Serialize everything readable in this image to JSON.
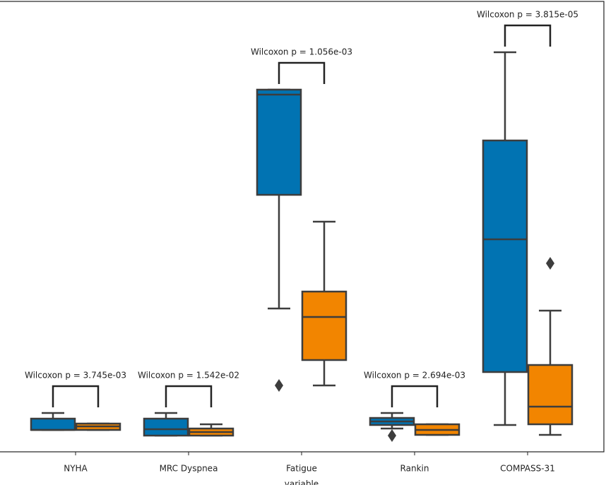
{
  "chart_data": {
    "type": "box",
    "categories": [
      "NYHA",
      "MRC Dyspnea",
      "Fatigue",
      "Rankin",
      "COMPASS-31"
    ],
    "xlabel": "variable",
    "ylim": [
      0,
      64
    ],
    "annotations": [
      "Wilcoxon p = 3.745e-03",
      "Wilcoxon p = 1.542e-02",
      "Wilcoxon p = 1.056e-03",
      "Wilcoxon p = 2.694e-03",
      "Wilcoxon p = 3.815e-05"
    ],
    "series": [
      {
        "color": "#0173b2",
        "boxes": [
          {
            "whislo": 3.1,
            "q1": 3.1,
            "median": 3.1,
            "q3": 4.7,
            "whishi": 5.5,
            "fliers": []
          },
          {
            "whislo": 2.3,
            "q1": 2.3,
            "median": 3.2,
            "q3": 4.7,
            "whishi": 5.5,
            "fliers": []
          },
          {
            "whislo": 20.3,
            "q1": 36.4,
            "median": 50.6,
            "q3": 51.3,
            "whishi": 51.3,
            "fliers": [
              9.4
            ]
          },
          {
            "whislo": 3.3,
            "q1": 3.8,
            "median": 4.3,
            "q3": 4.8,
            "whishi": 5.5,
            "fliers": [
              2.3
            ]
          },
          {
            "whislo": 3.8,
            "q1": 11.3,
            "median": 30.1,
            "q3": 44.1,
            "whishi": 56.6,
            "fliers": []
          }
        ]
      },
      {
        "color": "#f28500",
        "boxes": [
          {
            "whislo": 3.1,
            "q1": 3.1,
            "median": 3.6,
            "q3": 4.0,
            "whishi": 4.0,
            "fliers": []
          },
          {
            "whislo": 2.3,
            "q1": 2.3,
            "median": 2.8,
            "q3": 3.3,
            "whishi": 3.9,
            "fliers": []
          },
          {
            "whislo": 9.4,
            "q1": 13.0,
            "median": 19.1,
            "q3": 22.7,
            "whishi": 32.6,
            "fliers": []
          },
          {
            "whislo": 2.4,
            "q1": 2.4,
            "median": 3.1,
            "q3": 3.9,
            "whishi": 3.9,
            "fliers": []
          },
          {
            "whislo": 2.4,
            "q1": 3.9,
            "median": 6.4,
            "q3": 12.3,
            "whishi": 20.0,
            "fliers": [
              26.7
            ]
          }
        ]
      }
    ]
  }
}
